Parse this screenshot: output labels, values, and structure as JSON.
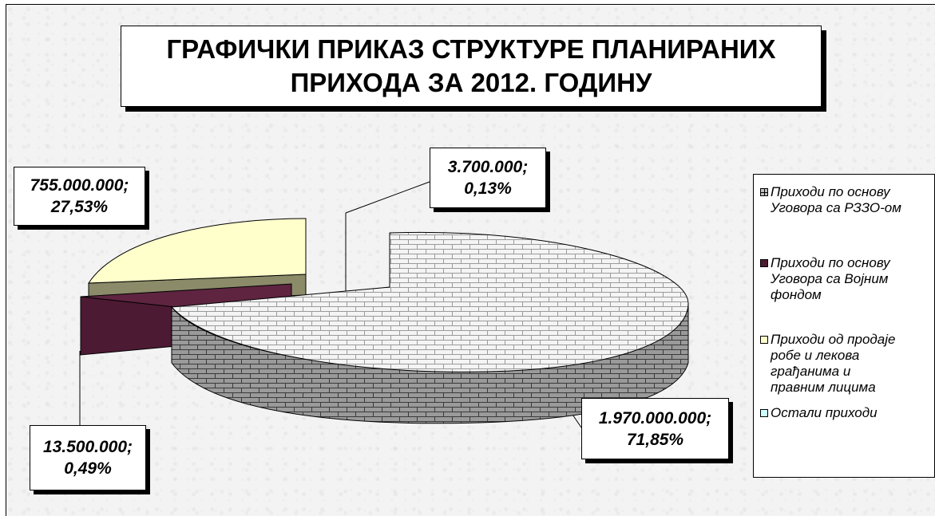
{
  "chart_data": {
    "type": "pie",
    "title_lines": [
      "ГРАФИЧКИ ПРИКАЗ СТРУКТУРЕ ПЛАНИРАНИХ",
      "ПРИХОДА ЗА 2012. ГОДИНУ"
    ],
    "slices": [
      {
        "name": "Приходи по основу Уговора са РЗЗО-ом",
        "value": 1970000000,
        "percent": 71.85,
        "label_value": "1.970.000.000;",
        "label_percent": "71,85%",
        "color": "#e8e8e8",
        "pattern": "brick"
      },
      {
        "name": "Приходи по основу Уговора са Војним фондом",
        "value": 13500000,
        "percent": 0.49,
        "label_value": "13.500.000;",
        "label_percent": "0,49%",
        "color": "#4d1a33",
        "pattern": "solid"
      },
      {
        "name": "Приходи од продаје робе и лекова грађанима и правним лицима",
        "value": 755000000,
        "percent": 27.53,
        "label_value": "755.000.000;",
        "label_percent": "27,53%",
        "color": "#ffffcc",
        "pattern": "solid"
      },
      {
        "name": "Остали приходи",
        "value": 3700000,
        "percent": 0.13,
        "label_value": "3.700.000;",
        "label_percent": "0,13%",
        "color": "#ccffff",
        "pattern": "solid"
      }
    ],
    "legend_position": "right",
    "exploded": true,
    "three_d": true
  },
  "legend": {
    "items": [
      {
        "label": "Приходи по основу\nУговора са РЗЗО-ом",
        "swatch": "#c0c0c0"
      },
      {
        "label": "Приходи по основу\nУговора са Војним\nфондом",
        "swatch": "#4d1a33"
      },
      {
        "label": "Приходи од продаје\nробе и лекова\nграђанима и\nправним лицима",
        "swatch": "#ffffcc"
      },
      {
        "label": "Остали приходи",
        "swatch": "#ccffff"
      }
    ]
  }
}
